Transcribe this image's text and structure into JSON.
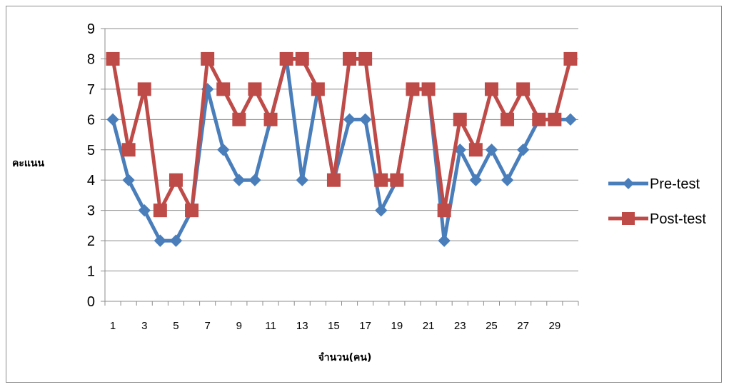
{
  "chart_data": {
    "type": "line",
    "xlabel": "จำนวน(คน)",
    "ylabel": "คะแนน",
    "ylim": [
      0,
      9
    ],
    "yticks": [
      0,
      1,
      2,
      3,
      4,
      5,
      6,
      7,
      8,
      9
    ],
    "x": [
      1,
      2,
      3,
      4,
      5,
      6,
      7,
      8,
      9,
      10,
      11,
      12,
      13,
      14,
      15,
      16,
      17,
      18,
      19,
      20,
      21,
      22,
      23,
      24,
      25,
      26,
      27,
      28,
      29,
      30
    ],
    "xtick_labels": [
      "1",
      "3",
      "5",
      "7",
      "9",
      "11",
      "13",
      "15",
      "17",
      "19",
      "21",
      "23",
      "25",
      "27",
      "29"
    ],
    "grid": true,
    "legend_position": "right",
    "series": [
      {
        "name": "Pre-test",
        "color": "#4a7ebb",
        "marker": "diamond",
        "values": [
          6,
          4,
          3,
          2,
          2,
          3,
          7,
          5,
          4,
          4,
          6,
          8,
          4,
          7,
          4,
          6,
          6,
          3,
          4,
          7,
          7,
          2,
          5,
          4,
          5,
          4,
          5,
          6,
          6,
          6
        ]
      },
      {
        "name": "Post-test",
        "color": "#be4b48",
        "marker": "square",
        "values": [
          8,
          5,
          7,
          3,
          4,
          3,
          8,
          7,
          6,
          7,
          6,
          8,
          8,
          7,
          4,
          8,
          8,
          4,
          4,
          7,
          7,
          3,
          6,
          5,
          7,
          6,
          7,
          6,
          6,
          8
        ]
      }
    ]
  }
}
